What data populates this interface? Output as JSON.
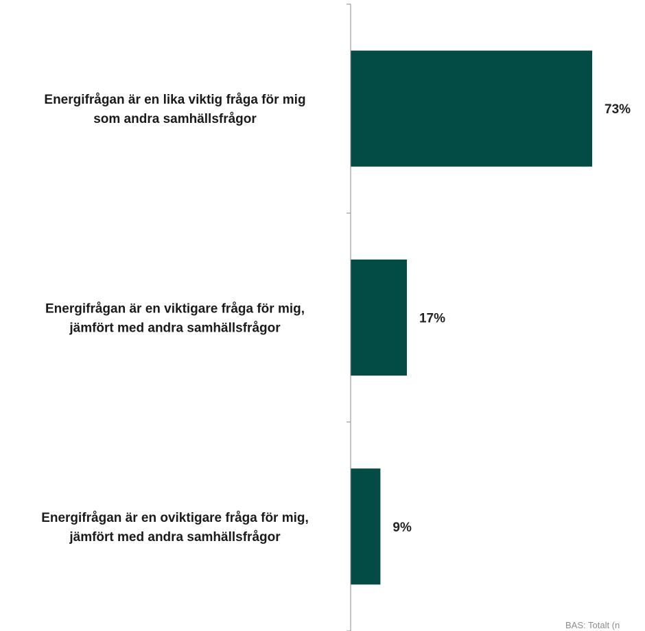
{
  "chart_data": {
    "type": "bar",
    "orientation": "horizontal",
    "categories": [
      "Energifrågan är en lika viktig fråga för mig som andra samhällsfrågor",
      "Energifrågan är en viktigare fråga för mig, jämfört med andra samhällsfrågor",
      "Energifrågan är en oviktigare fråga för mig, jämfört med andra samhällsfrågor"
    ],
    "category_lines": [
      [
        "Energifrågan är en lika viktig fråga för mig",
        "som andra samhällsfrågor"
      ],
      [
        "Energifrågan är en viktigare fråga för mig,",
        "jämfört med andra samhällsfrågor"
      ],
      [
        "Energifrågan är en oviktigare fråga för mig,",
        "jämfört med andra samhällsfrågor"
      ]
    ],
    "values": [
      73,
      17,
      9
    ],
    "value_labels": [
      "73%",
      "17%",
      "9%"
    ],
    "xlim": [
      0,
      100
    ],
    "bar_color": "#034c46",
    "grid": false,
    "legend": "none"
  },
  "footnote": "BAS: Totalt (n"
}
